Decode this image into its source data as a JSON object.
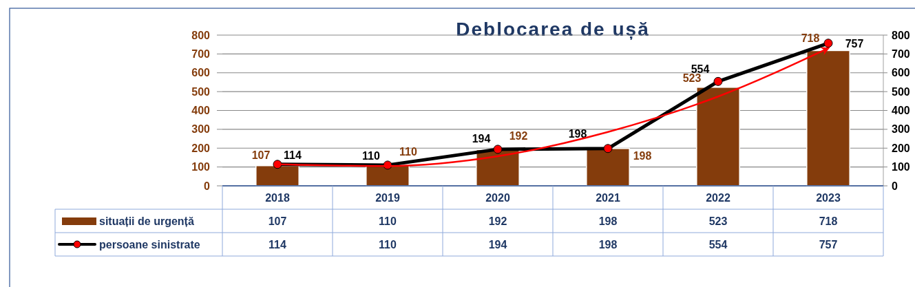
{
  "chart_data": {
    "type": "bar",
    "title": "Deblocarea de ușă",
    "categories": [
      "2018",
      "2019",
      "2020",
      "2021",
      "2022",
      "2023"
    ],
    "series": [
      {
        "name": "situații de urgență",
        "color": "#843c0c",
        "values": [
          107,
          110,
          192,
          198,
          523,
          718
        ],
        "value_labels": [
          "107",
          "110",
          "192",
          "198",
          "523",
          "718"
        ]
      },
      {
        "name": "persoane sinistrate",
        "type": "line",
        "color": "#000000",
        "marker": "circle",
        "values": [
          114,
          110,
          194,
          198,
          554,
          757
        ],
        "value_labels": [
          "114",
          "110",
          "194",
          "198",
          "554",
          "757"
        ]
      },
      {
        "type": "line",
        "color": "#ff0000",
        "marker": "none",
        "values": [
          114,
          105,
          157,
          286,
          474,
          730
        ]
      }
    ],
    "ylim": [
      0,
      800
    ],
    "yticks": [
      0,
      100,
      200,
      300,
      400,
      500,
      600,
      700,
      800
    ],
    "y2lim": [
      0,
      800
    ],
    "y2ticks": [
      0,
      100,
      200,
      300,
      400,
      500,
      600,
      700,
      800
    ],
    "grid": "y",
    "legend": "bottom"
  }
}
